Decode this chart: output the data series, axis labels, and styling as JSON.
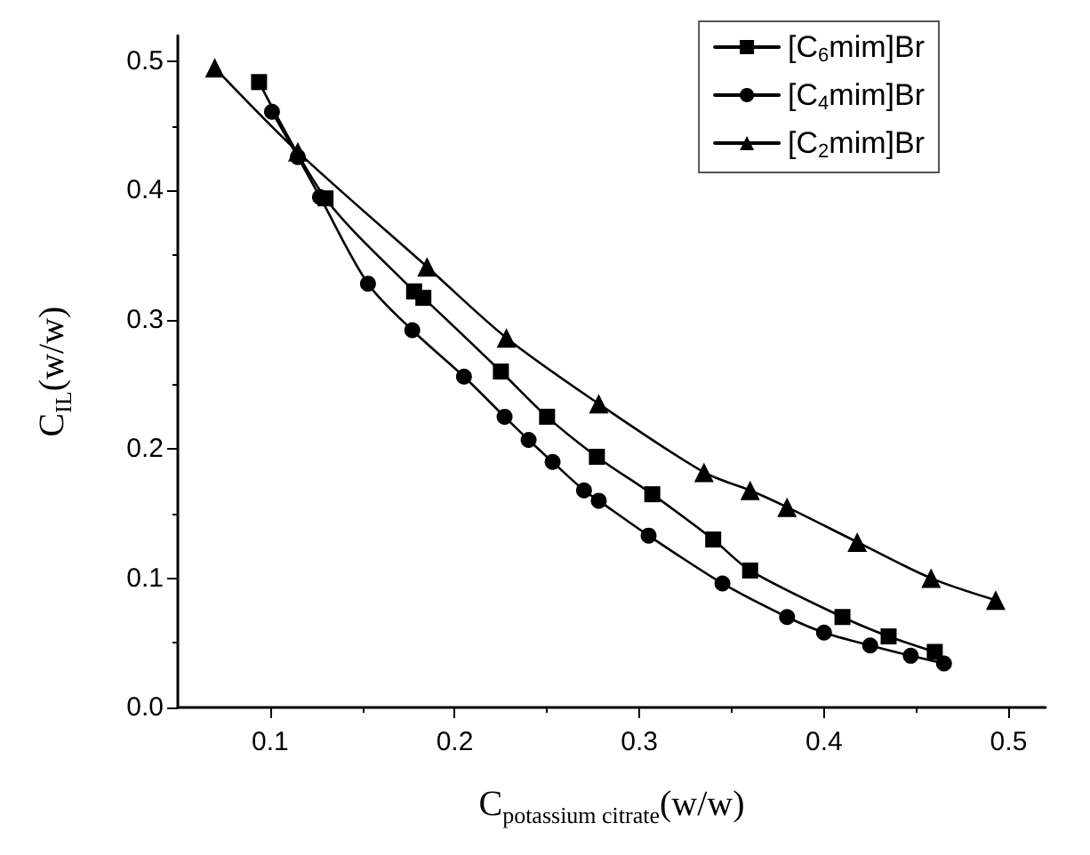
{
  "chart_data": {
    "type": "line",
    "xlabel": "C$_{potassium citrate}$(w/w)",
    "ylabel": "C$_{IL}$(w/w)",
    "xlim": [
      0.05,
      0.52
    ],
    "ylim": [
      0,
      0.52
    ],
    "xticks": [
      0.1,
      0.2,
      0.3,
      0.4,
      0.5
    ],
    "yticks": [
      {
        "value": 0,
        "label": "0.0"
      },
      0.1,
      0.2,
      0.3,
      0.4,
      0.5
    ],
    "grid": false,
    "legend": "top right",
    "line_style": "solid",
    "series": [
      {
        "name": "[C$_{6}$mim]Br",
        "color": "#000000",
        "marker": "square",
        "x": [
          0.094,
          0.13,
          0.178,
          0.183,
          0.225,
          0.25,
          0.277,
          0.307,
          0.34,
          0.36,
          0.41,
          0.435,
          0.46
        ],
        "values": [
          0.484,
          0.394,
          0.322,
          0.317,
          0.26,
          0.225,
          0.194,
          0.165,
          0.13,
          0.106,
          0.07,
          0.055,
          0.043
        ]
      },
      {
        "name": "[C$_{4}$mim]Br",
        "color": "#000000",
        "marker": "circle",
        "x": [
          0.101,
          0.115,
          0.127,
          0.153,
          0.177,
          0.205,
          0.227,
          0.24,
          0.253,
          0.27,
          0.278,
          0.305,
          0.345,
          0.38,
          0.4,
          0.425,
          0.447,
          0.465
        ],
        "values": [
          0.461,
          0.426,
          0.395,
          0.328,
          0.292,
          0.256,
          0.225,
          0.207,
          0.19,
          0.168,
          0.16,
          0.133,
          0.096,
          0.07,
          0.058,
          0.048,
          0.04,
          0.034
        ]
      },
      {
        "name": "[C$_{2}$mim]Br",
        "color": "#000000",
        "marker": "triangle",
        "x": [
          0.07,
          0.115,
          0.185,
          0.228,
          0.278,
          0.335,
          0.36,
          0.38,
          0.418,
          0.458,
          0.493
        ],
        "values": [
          0.495,
          0.43,
          0.341,
          0.286,
          0.235,
          0.182,
          0.168,
          0.155,
          0.128,
          0.1,
          0.083
        ]
      }
    ]
  }
}
